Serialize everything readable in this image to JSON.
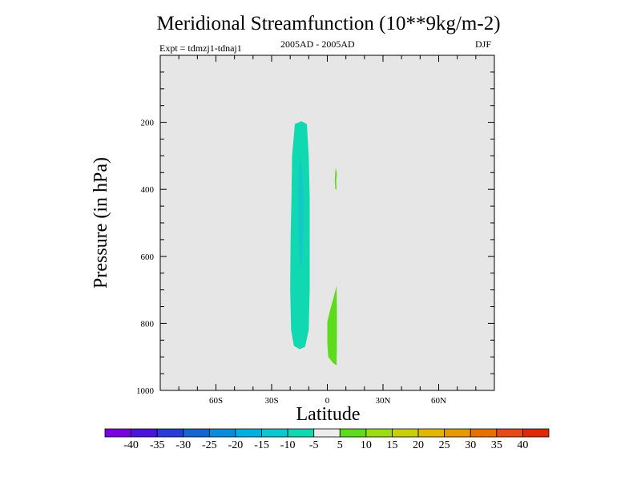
{
  "chart_data": {
    "type": "contour",
    "title": "Meridional Streamfunction (10**9kg/m-2)",
    "experiment": "Expt = tdmzj1-tdnaj1",
    "period": "2005AD - 2005AD",
    "season": "DJF",
    "xlabel": "Latitude",
    "ylabel": "Pressure (in hPa)",
    "xlim": [
      -90,
      90
    ],
    "ylim": [
      1000,
      0
    ],
    "x_ticks": [
      {
        "value": -60,
        "label": "60S"
      },
      {
        "value": -30,
        "label": "30S"
      },
      {
        "value": 0,
        "label": "0"
      },
      {
        "value": 30,
        "label": "30N"
      },
      {
        "value": 60,
        "label": "60N"
      }
    ],
    "y_ticks": [
      {
        "value": 200,
        "label": "200"
      },
      {
        "value": 400,
        "label": "400"
      },
      {
        "value": 600,
        "label": "600"
      },
      {
        "value": 800,
        "label": "800"
      },
      {
        "value": 1000,
        "label": "1000"
      }
    ],
    "background_color": "#e6e6e6",
    "contour_regions": [
      {
        "name": "negative-cell-outer",
        "level": -7.5,
        "color": "#10d8b0",
        "points": [
          [
            -14,
            197
          ],
          [
            -11,
            205
          ],
          [
            -10,
            300
          ],
          [
            -9.5,
            420
          ],
          [
            -9.5,
            560
          ],
          [
            -9.5,
            700
          ],
          [
            -10,
            820
          ],
          [
            -12,
            870
          ],
          [
            -15,
            877
          ],
          [
            -18,
            867
          ],
          [
            -19.5,
            820
          ],
          [
            -20,
            700
          ],
          [
            -19.8,
            560
          ],
          [
            -19.3,
            420
          ],
          [
            -19,
            300
          ],
          [
            -17.5,
            205
          ]
        ]
      },
      {
        "name": "negative-cell-inner",
        "level": -12.5,
        "color": "#14c8c8",
        "points": [
          [
            -14.5,
            300
          ],
          [
            -13,
            390
          ],
          [
            -12.8,
            500
          ],
          [
            -13.5,
            600
          ],
          [
            -14.2,
            640
          ],
          [
            -15,
            600
          ],
          [
            -15.8,
            500
          ],
          [
            -15.7,
            390
          ]
        ]
      },
      {
        "name": "positive-cell-upper",
        "level": 7.5,
        "color": "#5ddc1c",
        "points": [
          [
            4.5,
            335
          ],
          [
            5.2,
            355
          ],
          [
            4.8,
            375
          ],
          [
            5,
            400
          ],
          [
            4.3,
            400
          ],
          [
            4,
            375
          ],
          [
            4.2,
            355
          ]
        ]
      },
      {
        "name": "positive-cell-lower",
        "level": 7.5,
        "color": "#5ddc1c",
        "points": [
          [
            5,
            688
          ],
          [
            5.2,
            750
          ],
          [
            5.2,
            850
          ],
          [
            5,
            925
          ],
          [
            3,
            918
          ],
          [
            0.5,
            900
          ],
          [
            0,
            860
          ],
          [
            0,
            795
          ],
          [
            1.5,
            760
          ],
          [
            3,
            730
          ]
        ]
      }
    ],
    "colorbar": {
      "labels": [
        "-40",
        "-35",
        "-30",
        "-25",
        "-20",
        "-15",
        "-10",
        "-5",
        "5",
        "10",
        "15",
        "20",
        "25",
        "30",
        "35",
        "40"
      ],
      "colors": [
        "#7a00e0",
        "#4a14dc",
        "#2a3cd8",
        "#1464d4",
        "#0a8cdc",
        "#00b0e0",
        "#0ac8d0",
        "#10d8b0",
        "#ececec",
        "#5ddc1c",
        "#9cdc14",
        "#c8d00a",
        "#e0b800",
        "#e89800",
        "#e87000",
        "#e84818",
        "#e02808"
      ]
    }
  }
}
